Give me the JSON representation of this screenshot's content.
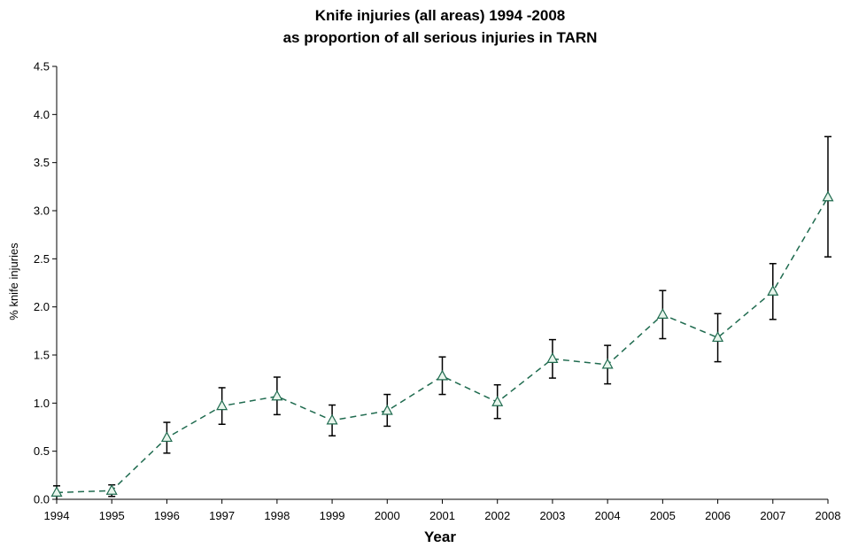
{
  "chart_data": {
    "type": "line",
    "title_line1": "Knife injuries (all areas) 1994 -2008",
    "title_line2": "as proportion of all serious injuries in TARN",
    "xlabel": "Year",
    "ylabel": "% knife injuries",
    "x": [
      "1994",
      "1995",
      "1996",
      "1997",
      "1998",
      "1999",
      "2000",
      "2001",
      "2002",
      "2003",
      "2004",
      "2005",
      "2006",
      "2007",
      "2008"
    ],
    "y_ticks": [
      "0.0",
      "0.5",
      "1.0",
      "1.5",
      "2.0",
      "2.5",
      "3.0",
      "3.5",
      "4.0",
      "4.5"
    ],
    "ylim": [
      0,
      4.5
    ],
    "grid": false,
    "series": [
      {
        "values": [
          0.07,
          0.09,
          0.64,
          0.97,
          1.07,
          0.82,
          0.92,
          1.28,
          1.01,
          1.46,
          1.4,
          1.92,
          1.68,
          2.16,
          3.14
        ],
        "error_low": [
          0.0,
          0.03,
          0.48,
          0.78,
          0.88,
          0.66,
          0.76,
          1.09,
          0.84,
          1.26,
          1.2,
          1.67,
          1.43,
          1.87,
          2.52
        ],
        "error_high": [
          0.14,
          0.15,
          0.8,
          1.16,
          1.27,
          0.98,
          1.09,
          1.48,
          1.19,
          1.66,
          1.6,
          2.17,
          1.93,
          2.45,
          3.77
        ],
        "color": "#1f6b4f",
        "marker": "triangle-open",
        "line_style": "dashed"
      }
    ]
  }
}
